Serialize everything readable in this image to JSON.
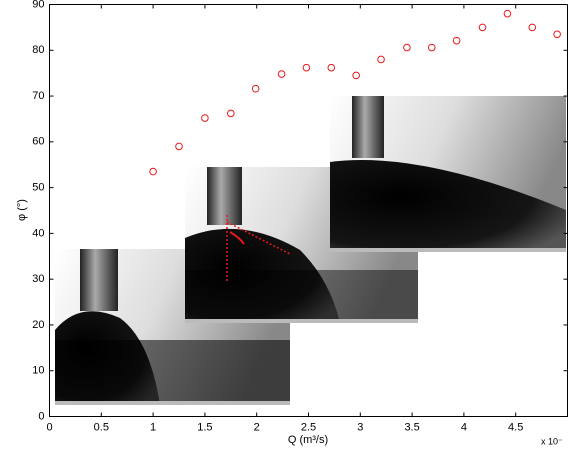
{
  "chart_data": {
    "type": "scatter",
    "xlabel": "Q (m³/s)",
    "ylabel": "φ (°)",
    "x_multiplier": "x 10⁻",
    "xlim": [
      0,
      5
    ],
    "ylim": [
      0,
      90
    ],
    "xticks": [
      0,
      0.5,
      1,
      1.5,
      2,
      2.5,
      3,
      3.5,
      4,
      4.5
    ],
    "yticks": [
      0,
      10,
      20,
      30,
      40,
      50,
      60,
      70,
      80,
      90
    ],
    "series": [
      {
        "color": "#e8191a",
        "x": [
          1.0,
          1.25,
          1.5,
          1.75,
          1.99,
          2.24,
          2.48,
          2.72,
          2.96,
          3.2,
          3.45,
          3.69,
          3.93,
          4.18,
          4.42,
          4.66,
          4.9
        ],
        "values": [
          53.5,
          59,
          65.2,
          66.2,
          71.6,
          74.8,
          76.2,
          76.2,
          74.5,
          78,
          80.6,
          80.6,
          82.1,
          85,
          88,
          85,
          83.5
        ]
      }
    ]
  }
}
